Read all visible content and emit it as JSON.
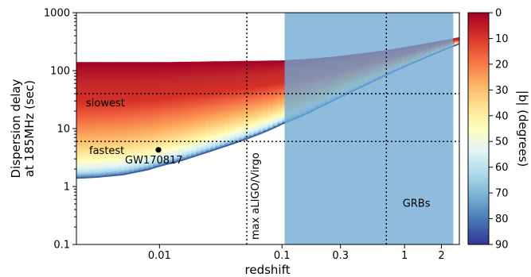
{
  "chart_data": {
    "type": "area",
    "xlabel": "redshift",
    "ylabel_lines": [
      "Dispersion delay",
      "at 185MHz (sec)"
    ],
    "x_scale": "log",
    "y_scale": "log",
    "xlim": [
      0.0021,
      2.8
    ],
    "ylim": [
      0.1,
      1000
    ],
    "x_ticks": [
      {
        "value": 0.01,
        "label": "0.01"
      },
      {
        "value": 0.1,
        "label": "0.1"
      },
      {
        "value": 0.3,
        "label": "0.3"
      },
      {
        "value": 1,
        "label": "1"
      },
      {
        "value": 2,
        "label": "2"
      }
    ],
    "y_ticks": [
      {
        "value": 0.1,
        "label": "0.1"
      },
      {
        "value": 1,
        "label": "1"
      },
      {
        "value": 10,
        "label": "10"
      },
      {
        "value": 100,
        "label": "100"
      },
      {
        "value": 1000,
        "label": "1000"
      }
    ],
    "min_delay_curve": {
      "x": [
        0.0021,
        0.003,
        0.005,
        0.008,
        0.01,
        0.015,
        0.02,
        0.03,
        0.045,
        0.06,
        0.08,
        0.1,
        0.15,
        0.2,
        0.3,
        0.4,
        0.6,
        0.8,
        1.0,
        1.5,
        2.0,
        2.5,
        2.8
      ],
      "y": [
        1.4,
        1.45,
        1.6,
        1.95,
        2.25,
        2.8,
        3.4,
        4.5,
        6.0,
        7.5,
        9.6,
        12,
        17,
        23,
        35,
        47,
        71,
        95,
        118,
        170,
        220,
        265,
        290
      ]
    },
    "max_delay_curve": {
      "x": [
        0.0021,
        0.01,
        0.1,
        0.2,
        0.3,
        0.5,
        0.8,
        1.0,
        1.5,
        2.0,
        2.5,
        2.8
      ],
      "y": [
        140,
        140,
        150,
        165,
        180,
        205,
        235,
        255,
        295,
        330,
        360,
        380
      ]
    },
    "colorbar": {
      "label": "|b| (degrees)",
      "range": [
        0,
        90
      ],
      "ticks": [
        "0",
        "10",
        "20",
        "30",
        "40",
        "50",
        "60",
        "70",
        "80",
        "90"
      ],
      "colormap": [
        "#a50026",
        "#d73027",
        "#f46d43",
        "#fdae61",
        "#fee090",
        "#ffffbf",
        "#e0f3f8",
        "#abd9e9",
        "#74add1",
        "#4575b4",
        "#313695"
      ]
    },
    "grb_region": {
      "x_start": 0.105,
      "x_end": 2.5,
      "label": "GRBs",
      "color": "#6fa8d2"
    },
    "vlines": [
      {
        "x": 0.0516,
        "label": "max aLIGO/Virgo"
      },
      {
        "x": 0.71
      }
    ],
    "hlines": [
      {
        "y": 40,
        "label": "slowest"
      },
      {
        "y": 6,
        "label": "fastest"
      }
    ],
    "event": {
      "x": 0.0098,
      "y": 4.3,
      "label": "GW170817"
    }
  }
}
